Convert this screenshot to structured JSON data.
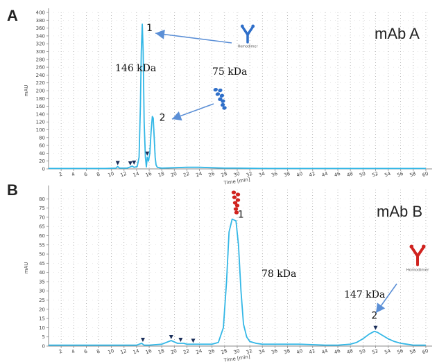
{
  "colors": {
    "trace": "#33b7e6",
    "axis": "#8a8a8a",
    "grid": "#8a8a8a",
    "arrow": "#5b8fd6",
    "antibody_blue": "#2f6fc9",
    "antibody_red": "#d0231f",
    "marker": "#1b2f5a"
  },
  "chart_data": [
    {
      "type": "line",
      "panel": "A",
      "title": "mAb A",
      "xlabel": "Time [min]",
      "ylabel": "mAU",
      "xlim": [
        0,
        61
      ],
      "ylim": [
        0,
        400
      ],
      "xticks": [
        2,
        4,
        6,
        8,
        10,
        12,
        14,
        16,
        18,
        20,
        22,
        24,
        26,
        28,
        30,
        32,
        34,
        36,
        38,
        40,
        42,
        44,
        46,
        48,
        50,
        52,
        54,
        56,
        58,
        60
      ],
      "yticks": [
        0,
        20,
        40,
        60,
        80,
        100,
        120,
        140,
        160,
        180,
        200,
        220,
        240,
        260,
        280,
        300,
        320,
        340,
        360,
        380,
        400
      ],
      "series": [
        {
          "x": [
            0,
            5,
            9,
            10.7,
            11,
            11.3,
            12.5,
            13,
            13.3,
            13.6,
            14.1,
            14.4,
            14.6,
            14.75,
            14.9,
            15.05,
            15.2,
            15.4,
            15.55,
            15.7,
            15.9,
            16.1,
            16.3,
            16.5,
            16.65,
            16.8,
            16.95,
            17.1,
            17.3,
            17.6,
            18,
            20,
            22,
            24,
            26,
            28,
            30,
            35,
            40,
            50,
            60
          ],
          "y": [
            1,
            1,
            1,
            2,
            6,
            2,
            2,
            5,
            7,
            4,
            6,
            30,
            160,
            300,
            370,
            300,
            120,
            30,
            5,
            30,
            20,
            40,
            95,
            134,
            130,
            80,
            30,
            10,
            4,
            3,
            2,
            3,
            4,
            4,
            3,
            2,
            2,
            1,
            1,
            1,
            1
          ]
        }
      ],
      "peaks": [
        {
          "label": "1",
          "x": 14.9,
          "y": 370
        },
        {
          "label": "2",
          "x": 16.5,
          "y": 134
        }
      ],
      "markers": [
        {
          "x": 11.0,
          "y": 6
        },
        {
          "x": 13.0,
          "y": 5
        },
        {
          "x": 13.6,
          "y": 7
        },
        {
          "x": 15.7,
          "y": 30
        }
      ],
      "annotations": [
        {
          "id": "kda_146",
          "text": "146 kDa"
        },
        {
          "id": "kda_75",
          "text": "75 kDa"
        }
      ],
      "icons": [
        {
          "name": "blue-y-antibody-icon",
          "caption": "Homodimer"
        },
        {
          "name": "blue-fragment-icon",
          "caption": ""
        }
      ]
    },
    {
      "type": "line",
      "panel": "B",
      "title": "mAb B",
      "xlabel": "Time [min]",
      "ylabel": "mAU",
      "xlim": [
        0,
        61
      ],
      "ylim": [
        0,
        85
      ],
      "xticks": [
        2,
        4,
        6,
        8,
        10,
        12,
        14,
        16,
        18,
        20,
        22,
        24,
        26,
        28,
        30,
        32,
        34,
        36,
        38,
        40,
        42,
        44,
        46,
        48,
        50,
        52,
        54,
        56,
        58,
        60
      ],
      "yticks": [
        0,
        5,
        10,
        15,
        20,
        25,
        30,
        35,
        40,
        45,
        50,
        55,
        60,
        65,
        70,
        75,
        80
      ],
      "series": [
        {
          "x": [
            0,
            8,
            12,
            14,
            14.8,
            15.2,
            16,
            18,
            19.5,
            20.5,
            21,
            21.5,
            22,
            23,
            24,
            26,
            27,
            27.8,
            28.3,
            28.7,
            29.2,
            29.8,
            30.2,
            30.6,
            31,
            31.5,
            32,
            33,
            34,
            36,
            40,
            44,
            46,
            48,
            49,
            50,
            51,
            51.8,
            52.3,
            53,
            54,
            55,
            56,
            57,
            58,
            59,
            60
          ],
          "y": [
            0.5,
            0.5,
            0.5,
            0.5,
            1.5,
            0.5,
            0.5,
            1,
            3,
            1.5,
            1.5,
            1.5,
            1,
            1,
            1,
            1,
            2,
            10,
            35,
            62,
            69,
            68,
            55,
            30,
            12,
            5,
            2.5,
            1.5,
            1,
            1,
            1,
            0.5,
            0.5,
            1,
            2,
            4,
            6.5,
            8,
            7.5,
            6,
            4,
            2.5,
            1.5,
            1,
            0.5,
            0.5,
            0.5
          ]
        }
      ],
      "peaks": [
        {
          "label": "1",
          "x": 29.2,
          "y": 69
        },
        {
          "label": "2",
          "x": 52,
          "y": 8
        }
      ],
      "markers": [
        {
          "x": 15.0,
          "y": 1.5
        },
        {
          "x": 19.5,
          "y": 3
        },
        {
          "x": 21.0,
          "y": 1.5
        },
        {
          "x": 23.0,
          "y": 1.0
        },
        {
          "x": 52.0,
          "y": 8
        }
      ],
      "annotations": [
        {
          "id": "kda_78",
          "text": "78 kDa"
        },
        {
          "id": "kda_147",
          "text": "147 kDa"
        }
      ],
      "icons": [
        {
          "name": "red-fragment-icon",
          "caption": ""
        },
        {
          "name": "red-y-antibody-icon",
          "caption": "Homodimer"
        }
      ]
    }
  ]
}
